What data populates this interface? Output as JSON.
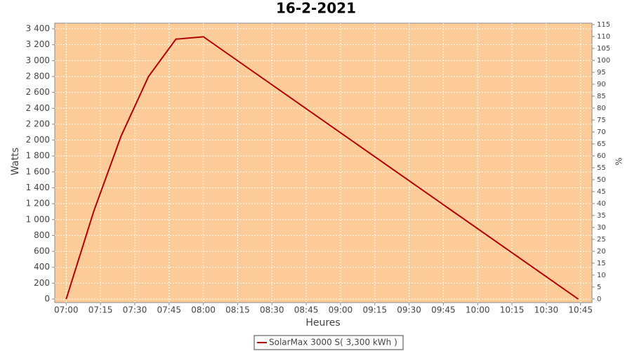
{
  "chart_data": {
    "type": "line",
    "title": "16-2-2021",
    "x_label": "Heures",
    "y_label": "Watts",
    "y2_label": "%",
    "x": [
      "07:00",
      "07:12",
      "07:24",
      "07:36",
      "07:48",
      "08:00",
      "10:44"
    ],
    "series": [
      {
        "name": "SolarMax 3000 S( 3,300 kWh )",
        "color": "#b30000",
        "values": [
          0,
          1100,
          2050,
          2800,
          3270,
          3300,
          0
        ]
      }
    ],
    "xlim": [
      "06:55",
      "10:50"
    ],
    "xticks": [
      "07:00",
      "07:15",
      "07:30",
      "07:45",
      "08:00",
      "08:15",
      "08:30",
      "08:45",
      "09:00",
      "09:15",
      "09:30",
      "09:45",
      "10:00",
      "10:15",
      "10:30",
      "10:45"
    ],
    "ylim": [
      -44,
      3471
    ],
    "yticks": [
      0,
      200,
      400,
      600,
      800,
      {
        "value": 1000,
        "label": "1 000"
      },
      {
        "value": 1200,
        "label": "1 200"
      },
      {
        "value": 1400,
        "label": "1 400"
      },
      {
        "value": 1600,
        "label": "1 600"
      },
      {
        "value": 1800,
        "label": "1 800"
      },
      {
        "value": 2000,
        "label": "2 000"
      },
      {
        "value": 2200,
        "label": "2 200"
      },
      {
        "value": 2400,
        "label": "2 400"
      },
      {
        "value": 2600,
        "label": "2 600"
      },
      {
        "value": 2800,
        "label": "2 800"
      },
      {
        "value": 3000,
        "label": "3 000"
      },
      {
        "value": 3200,
        "label": "3 200"
      },
      {
        "value": 3400,
        "label": "3 400"
      }
    ],
    "y2lim": [
      -1.5,
      115.6
    ],
    "y2ticks": [
      0,
      5,
      10,
      15,
      20,
      25,
      30,
      35,
      40,
      45,
      50,
      55,
      60,
      65,
      70,
      75,
      80,
      85,
      90,
      95,
      100,
      105,
      110,
      115
    ],
    "grid": true,
    "plot_background": "#fdcc99"
  }
}
